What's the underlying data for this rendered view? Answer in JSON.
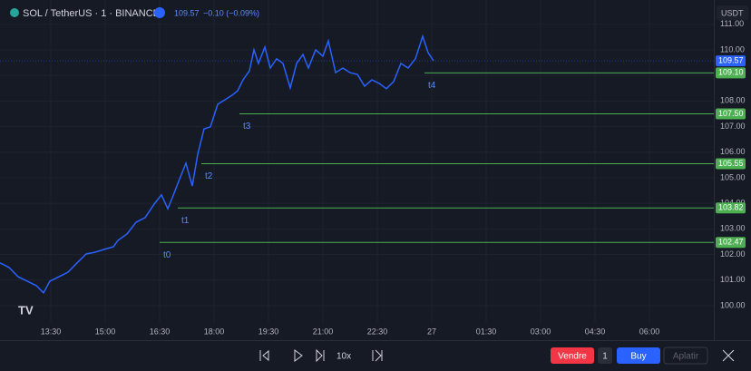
{
  "header": {
    "symbol": "SOL / TetherUS · 1 · BINANCE",
    "change": "−0.10 (−0.09%)",
    "currency": "USDT"
  },
  "toolbar": {
    "speed": "10x",
    "sell": "Vendre",
    "quantity": "1",
    "buy": "Buy",
    "flatten": "Aplatir"
  },
  "chart_data": {
    "type": "line",
    "color": "#2962ff",
    "x": [
      726,
      741,
      756,
      771,
      786,
      798,
      808.5,
      823.5,
      838.5,
      853.5,
      868.5,
      883.5,
      898.5,
      913.5,
      921,
      936,
      951,
      966,
      981,
      993,
      1003.5,
      1011,
      1021.5,
      1033.5,
      1044,
      1053,
      1063.5,
      1074,
      1086,
      1098,
      1110,
      1119,
      1128,
      1138.5,
      1146,
      1153.5,
      1164,
      1173,
      1183.5,
      1194,
      1206,
      1216.5,
      1227,
      1236,
      1248,
      1260,
      1269,
      1281,
      1293,
      1305,
      1317,
      1329,
      1341,
      1353,
      1365,
      1377,
      1389,
      1401,
      1413,
      1425,
      1434,
      1443
    ],
    "values": [
      101.67,
      101.49,
      101.13,
      100.96,
      100.78,
      100.5,
      100.96,
      101.13,
      101.31,
      101.67,
      102.02,
      102.09,
      102.2,
      102.3,
      102.55,
      102.8,
      103.26,
      103.44,
      103.97,
      104.33,
      103.79,
      104.22,
      104.86,
      105.57,
      104.68,
      105.92,
      106.91,
      106.99,
      107.87,
      108.05,
      108.23,
      108.4,
      108.83,
      109.18,
      110.0,
      109.47,
      110.11,
      109.29,
      109.65,
      109.47,
      108.51,
      109.47,
      109.82,
      109.29,
      110.0,
      109.75,
      110.35,
      109.11,
      109.29,
      109.11,
      109.04,
      108.58,
      108.83,
      108.69,
      108.48,
      108.76,
      109.47,
      109.29,
      109.65,
      110.53,
      109.89,
      109.57
    ],
    "levels": [
      {
        "name": "t0",
        "value": 102.47,
        "value_label": "102.47",
        "start": 990
      },
      {
        "name": "t1",
        "value": 103.82,
        "value_label": "103.82",
        "start": 1020
      },
      {
        "name": "t2",
        "value": 105.55,
        "value_label": "105.55",
        "start": 1059
      },
      {
        "name": "t3",
        "value": 107.5,
        "value_label": "107.50",
        "start": 1122
      },
      {
        "name": "t4",
        "value": 109.1,
        "value_label": "109.10",
        "start": 1428
      }
    ],
    "level_color": "#4caf50",
    "xlim": [
      726,
      1906.5
    ],
    "ylim": [
      98.65,
      111.95
    ],
    "xticks": [
      {
        "value": 810,
        "label": "13:30"
      },
      {
        "value": 900,
        "label": "15:00"
      },
      {
        "value": 990,
        "label": "16:30"
      },
      {
        "value": 1080,
        "label": "18:00"
      },
      {
        "value": 1170,
        "label": "19:30"
      },
      {
        "value": 1260,
        "label": "21:00"
      },
      {
        "value": 1350,
        "label": "22:30"
      },
      {
        "value": 1440,
        "label": "27"
      },
      {
        "value": 1530,
        "label": "01:30"
      },
      {
        "value": 1620,
        "label": "03:00"
      },
      {
        "value": 1710,
        "label": "04:30"
      },
      {
        "value": 1800,
        "label": "06:00"
      }
    ],
    "yticks": [
      {
        "value": 100,
        "label": "100.00"
      },
      {
        "value": 101,
        "label": "101.00"
      },
      {
        "value": 102,
        "label": "102.00"
      },
      {
        "value": 103,
        "label": "103.00"
      },
      {
        "value": 104,
        "label": "104.00"
      },
      {
        "value": 105,
        "label": "105.00"
      },
      {
        "value": 106,
        "label": "106.00"
      },
      {
        "value": 107,
        "label": "107.00"
      },
      {
        "value": 108,
        "label": "108.00"
      },
      {
        "value": 109,
        "label": "109.00"
      },
      {
        "value": 110,
        "label": "110.00"
      },
      {
        "value": 111,
        "label": "111.00"
      }
    ],
    "grid": true
  }
}
